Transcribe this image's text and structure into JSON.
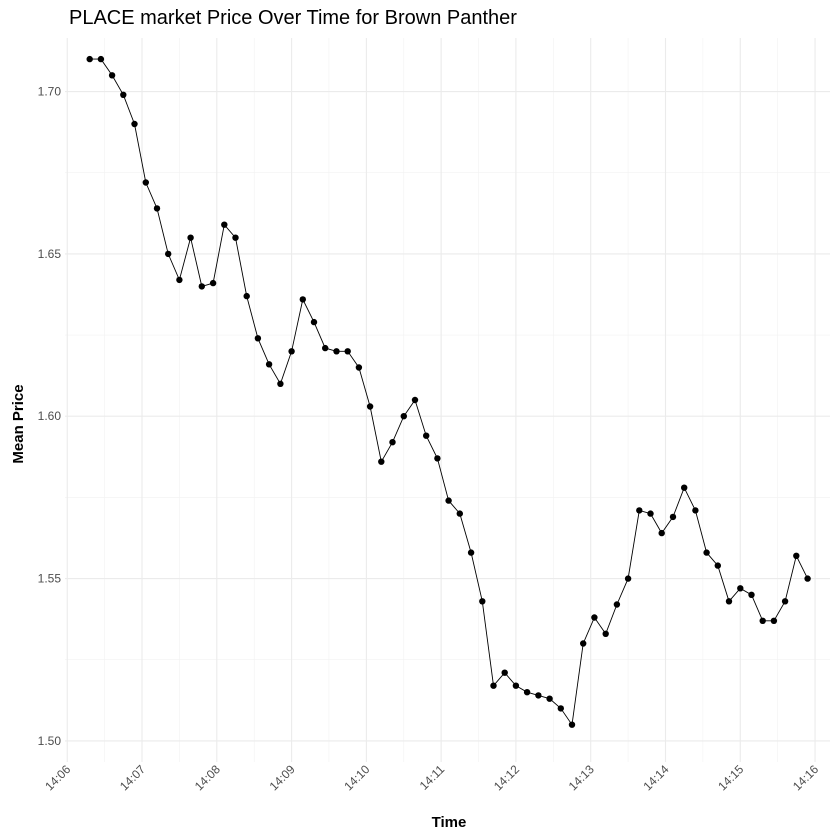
{
  "chart_data": {
    "type": "line",
    "title": "PLACE market Price Over Time for Brown Panther",
    "xlabel": "Time",
    "ylabel": "Mean Price",
    "x_tick_labels": [
      "14:06",
      "14:07",
      "14:08",
      "14:09",
      "14:10",
      "14:11",
      "14:12",
      "14:13",
      "14:14",
      "14:15",
      "14:16"
    ],
    "y_ticks": [
      1.5,
      1.55,
      1.6,
      1.65,
      1.7
    ],
    "y_tick_labels": [
      "1.50",
      "1.55",
      "1.60",
      "1.65",
      "1.70"
    ],
    "xlim_minutes": [
      -0.03,
      10.2
    ],
    "ylim": [
      1.4935,
      1.7165
    ],
    "grid": true,
    "marker_color": "#000000",
    "line_color": "#000000",
    "series": [
      {
        "name": "Mean Price",
        "x_minutes_after_1406": [
          0.3,
          0.45,
          0.6,
          0.75,
          0.9,
          1.05,
          1.2,
          1.35,
          1.5,
          1.65,
          1.8,
          1.95,
          2.1,
          2.25,
          2.4,
          2.55,
          2.7,
          2.85,
          3.0,
          3.15,
          3.3,
          3.45,
          3.6,
          3.75,
          3.9,
          4.05,
          4.2,
          4.35,
          4.5,
          4.65,
          4.8,
          4.95,
          5.1,
          5.25,
          5.4,
          5.55,
          5.7,
          5.85,
          6.0,
          6.15,
          6.3,
          6.45,
          6.6,
          6.75,
          6.9,
          7.05,
          7.2,
          7.35,
          7.5,
          7.65,
          7.8,
          7.95,
          8.1,
          8.25,
          8.4,
          8.55,
          8.7,
          8.85,
          9.0,
          9.15,
          9.3,
          9.45,
          9.6,
          9.75,
          9.9
        ],
        "values": [
          1.71,
          1.71,
          1.705,
          1.699,
          1.69,
          1.672,
          1.664,
          1.65,
          1.642,
          1.655,
          1.64,
          1.641,
          1.659,
          1.655,
          1.637,
          1.624,
          1.616,
          1.61,
          1.62,
          1.636,
          1.629,
          1.621,
          1.62,
          1.62,
          1.615,
          1.603,
          1.586,
          1.592,
          1.6,
          1.605,
          1.594,
          1.587,
          1.574,
          1.57,
          1.558,
          1.543,
          1.517,
          1.521,
          1.517,
          1.515,
          1.514,
          1.513,
          1.51,
          1.505,
          1.53,
          1.538,
          1.533,
          1.542,
          1.55,
          1.571,
          1.57,
          1.564,
          1.569,
          1.578,
          1.571,
          1.558,
          1.554,
          1.543,
          1.547,
          1.545,
          1.537,
          1.537,
          1.543,
          1.557,
          1.55
        ]
      }
    ]
  }
}
